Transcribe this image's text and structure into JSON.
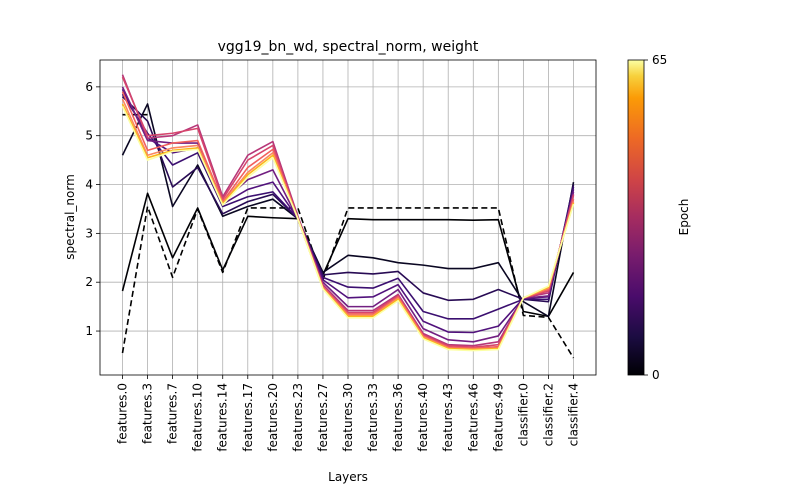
{
  "chart_data": {
    "type": "line",
    "title": "vgg19_bn_wd, spectral_norm, weight",
    "xlabel": "Layers",
    "ylabel": "spectral_norm",
    "ylim": [
      0.1,
      6.55
    ],
    "yticks": [
      1,
      2,
      3,
      4,
      5,
      6
    ],
    "grid": true,
    "categories": [
      "features.0",
      "features.3",
      "features.7",
      "features.10",
      "features.14",
      "features.17",
      "features.20",
      "features.23",
      "features.27",
      "features.30",
      "features.33",
      "features.36",
      "features.40",
      "features.43",
      "features.46",
      "features.49",
      "classifier.0",
      "classifier.2",
      "classifier.4"
    ],
    "colorbar": {
      "label": "Epoch",
      "min": 0,
      "max": 65,
      "min_label": "0",
      "max_label": "65",
      "colormap": "inferno"
    },
    "series": [
      {
        "epoch": 0,
        "style": "dashed",
        "color": "#000000",
        "values": [
          0.55,
          3.55,
          2.1,
          3.5,
          2.2,
          3.52,
          3.52,
          3.52,
          2.05,
          3.52,
          3.52,
          3.52,
          3.52,
          3.52,
          3.52,
          3.52,
          1.32,
          1.28,
          0.45
        ]
      },
      {
        "epoch": 0,
        "style": "dashed",
        "color": "#000000",
        "values": [
          5.43,
          5.43,
          null,
          null,
          null,
          null,
          null,
          null,
          null,
          null,
          null,
          null,
          null,
          null,
          null,
          null,
          null,
          null,
          null
        ]
      },
      {
        "epoch": 1,
        "style": "solid",
        "color": "#000004",
        "values": [
          1.82,
          3.82,
          2.5,
          3.52,
          2.25,
          3.35,
          3.32,
          3.3,
          2.15,
          3.3,
          3.28,
          3.28,
          3.28,
          3.28,
          3.27,
          3.28,
          1.4,
          1.3,
          2.2
        ]
      },
      {
        "epoch": 2,
        "style": "solid",
        "color": "#0a0722",
        "values": [
          4.6,
          5.65,
          3.55,
          4.4,
          3.35,
          3.55,
          3.7,
          3.3,
          2.2,
          2.55,
          2.5,
          2.4,
          2.35,
          2.28,
          2.28,
          2.4,
          1.6,
          1.3,
          4.05
        ]
      },
      {
        "epoch": 5,
        "style": "solid",
        "color": "#280b54",
        "values": [
          5.8,
          5.3,
          3.95,
          4.35,
          3.4,
          3.65,
          3.8,
          3.3,
          2.15,
          2.2,
          2.17,
          2.22,
          1.78,
          1.63,
          1.65,
          1.85,
          1.65,
          1.6,
          4.0
        ]
      },
      {
        "epoch": 10,
        "style": "solid",
        "color": "#3b0f70",
        "values": [
          5.85,
          5.05,
          4.4,
          4.65,
          3.55,
          3.75,
          3.85,
          3.3,
          2.1,
          1.9,
          1.88,
          2.08,
          1.4,
          1.25,
          1.25,
          1.45,
          1.65,
          1.65,
          3.95
        ]
      },
      {
        "epoch": 15,
        "style": "solid",
        "color": "#51127c",
        "values": [
          5.95,
          4.95,
          4.65,
          4.75,
          3.6,
          3.9,
          4.05,
          3.3,
          2.05,
          1.68,
          1.7,
          1.95,
          1.2,
          0.98,
          0.97,
          1.1,
          1.67,
          1.7,
          3.9
        ]
      },
      {
        "epoch": 20,
        "style": "solid",
        "color": "#721f81",
        "values": [
          6.0,
          4.9,
          4.85,
          4.85,
          3.65,
          4.1,
          4.3,
          3.3,
          2.0,
          1.5,
          1.5,
          1.85,
          1.05,
          0.82,
          0.78,
          0.9,
          1.67,
          1.72,
          3.85
        ]
      },
      {
        "epoch": 30,
        "style": "solid",
        "color": "#b73779",
        "values": [
          6.25,
          4.95,
          5.0,
          5.22,
          3.75,
          4.6,
          4.88,
          3.35,
          1.95,
          1.42,
          1.42,
          1.75,
          0.95,
          0.72,
          0.7,
          0.78,
          1.68,
          1.78,
          3.8
        ]
      },
      {
        "epoch": 40,
        "style": "solid",
        "color": "#d6456c",
        "values": [
          6.2,
          5.0,
          5.05,
          5.15,
          3.7,
          4.5,
          4.8,
          3.3,
          1.9,
          1.38,
          1.38,
          1.72,
          0.92,
          0.7,
          0.67,
          0.72,
          1.68,
          1.82,
          3.78
        ]
      },
      {
        "epoch": 50,
        "style": "solid",
        "color": "#f1605d",
        "values": [
          5.9,
          4.7,
          4.85,
          4.9,
          3.65,
          4.35,
          4.72,
          3.3,
          1.9,
          1.35,
          1.35,
          1.7,
          0.9,
          0.67,
          0.65,
          0.68,
          1.68,
          1.85,
          3.7
        ]
      },
      {
        "epoch": 55,
        "style": "solid",
        "color": "#fb8761",
        "values": [
          5.75,
          4.6,
          4.75,
          4.8,
          3.62,
          4.25,
          4.65,
          3.3,
          1.88,
          1.32,
          1.32,
          1.67,
          0.88,
          0.65,
          0.63,
          0.65,
          1.68,
          1.88,
          3.65
        ]
      },
      {
        "epoch": 60,
        "style": "solid",
        "color": "#fcb519",
        "values": [
          5.65,
          4.55,
          4.7,
          4.75,
          3.6,
          4.2,
          4.6,
          3.3,
          1.87,
          1.3,
          1.3,
          1.65,
          0.86,
          0.64,
          0.62,
          0.64,
          1.68,
          1.9,
          3.62
        ]
      },
      {
        "epoch": 65,
        "style": "solid",
        "color": "#fcffa4",
        "values": [
          5.6,
          4.5,
          4.68,
          4.72,
          3.58,
          4.15,
          4.55,
          3.3,
          1.86,
          1.27,
          1.27,
          1.62,
          0.84,
          0.62,
          0.6,
          0.62,
          1.68,
          1.92,
          3.6
        ]
      }
    ]
  }
}
